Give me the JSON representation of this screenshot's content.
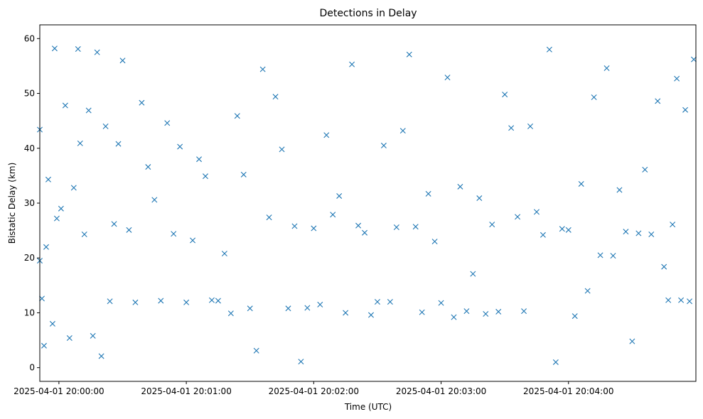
{
  "chart_data": {
    "type": "scatter",
    "title": "Detections in Delay",
    "xlabel": "Time (UTC)",
    "ylabel": "Bistatic Delay (km)",
    "marker": "x",
    "color": "#1f77b4",
    "grid": false,
    "legend": "none",
    "x_unit": "datetime",
    "xlim": [
      "2025-04-01 19:59:51",
      "2025-04-01 20:05:00"
    ],
    "ylim": [
      -2.5,
      62.5
    ],
    "x_ticks": [
      "2025-04-01 20:00:00",
      "2025-04-01 20:01:00",
      "2025-04-01 20:02:00",
      "2025-04-01 20:03:00",
      "2025-04-01 20:04:00"
    ],
    "y_ticks": [
      0,
      10,
      20,
      30,
      40,
      50,
      60
    ],
    "series": [
      {
        "x": [
          "2025-04-01 19:59:51",
          "2025-04-01 19:59:51",
          "2025-04-01 19:59:52",
          "2025-04-01 19:59:53",
          "2025-04-01 19:59:54",
          "2025-04-01 19:59:55",
          "2025-04-01 19:59:57",
          "2025-04-01 19:59:58",
          "2025-04-01 19:59:59",
          "2025-04-01 20:00:01",
          "2025-04-01 20:00:03",
          "2025-04-01 20:00:05",
          "2025-04-01 20:00:07",
          "2025-04-01 20:00:09",
          "2025-04-01 20:00:10",
          "2025-04-01 20:00:12",
          "2025-04-01 20:00:14",
          "2025-04-01 20:00:16",
          "2025-04-01 20:00:18",
          "2025-04-01 20:00:20",
          "2025-04-01 20:00:22",
          "2025-04-01 20:00:24",
          "2025-04-01 20:00:26",
          "2025-04-01 20:00:28",
          "2025-04-01 20:00:30",
          "2025-04-01 20:00:33",
          "2025-04-01 20:00:36",
          "2025-04-01 20:00:39",
          "2025-04-01 20:00:42",
          "2025-04-01 20:00:45",
          "2025-04-01 20:00:48",
          "2025-04-01 20:00:51",
          "2025-04-01 20:00:54",
          "2025-04-01 20:00:57",
          "2025-04-01 20:01:00",
          "2025-04-01 20:01:03",
          "2025-04-01 20:01:06",
          "2025-04-01 20:01:09",
          "2025-04-01 20:01:12",
          "2025-04-01 20:01:15",
          "2025-04-01 20:01:18",
          "2025-04-01 20:01:21",
          "2025-04-01 20:01:24",
          "2025-04-01 20:01:27",
          "2025-04-01 20:01:30",
          "2025-04-01 20:01:33",
          "2025-04-01 20:01:36",
          "2025-04-01 20:01:39",
          "2025-04-01 20:01:42",
          "2025-04-01 20:01:45",
          "2025-04-01 20:01:48",
          "2025-04-01 20:01:51",
          "2025-04-01 20:01:54",
          "2025-04-01 20:01:57",
          "2025-04-01 20:02:00",
          "2025-04-01 20:02:03",
          "2025-04-01 20:02:06",
          "2025-04-01 20:02:09",
          "2025-04-01 20:02:12",
          "2025-04-01 20:02:15",
          "2025-04-01 20:02:18",
          "2025-04-01 20:02:21",
          "2025-04-01 20:02:24",
          "2025-04-01 20:02:27",
          "2025-04-01 20:02:30",
          "2025-04-01 20:02:33",
          "2025-04-01 20:02:36",
          "2025-04-01 20:02:39",
          "2025-04-01 20:02:42",
          "2025-04-01 20:02:45",
          "2025-04-01 20:02:48",
          "2025-04-01 20:02:51",
          "2025-04-01 20:02:54",
          "2025-04-01 20:02:57",
          "2025-04-01 20:03:00",
          "2025-04-01 20:03:03",
          "2025-04-01 20:03:06",
          "2025-04-01 20:03:09",
          "2025-04-01 20:03:12",
          "2025-04-01 20:03:15",
          "2025-04-01 20:03:18",
          "2025-04-01 20:03:21",
          "2025-04-01 20:03:24",
          "2025-04-01 20:03:27",
          "2025-04-01 20:03:30",
          "2025-04-01 20:03:33",
          "2025-04-01 20:03:36",
          "2025-04-01 20:03:39",
          "2025-04-01 20:03:42",
          "2025-04-01 20:03:45",
          "2025-04-01 20:03:48",
          "2025-04-01 20:03:51",
          "2025-04-01 20:03:54",
          "2025-04-01 20:03:57",
          "2025-04-01 20:04:00",
          "2025-04-01 20:04:03",
          "2025-04-01 20:04:06",
          "2025-04-01 20:04:09",
          "2025-04-01 20:04:12",
          "2025-04-01 20:04:15",
          "2025-04-01 20:04:18",
          "2025-04-01 20:04:21",
          "2025-04-01 20:04:24",
          "2025-04-01 20:04:27",
          "2025-04-01 20:04:30",
          "2025-04-01 20:04:33",
          "2025-04-01 20:04:36",
          "2025-04-01 20:04:39",
          "2025-04-01 20:04:42",
          "2025-04-01 20:04:45",
          "2025-04-01 20:04:47",
          "2025-04-01 20:04:49",
          "2025-04-01 20:04:51",
          "2025-04-01 20:04:53",
          "2025-04-01 20:04:55",
          "2025-04-01 20:04:57",
          "2025-04-01 20:04:59"
        ],
        "y": [
          43.4,
          19.5,
          12.6,
          4.0,
          22.0,
          34.3,
          8.0,
          58.2,
          27.2,
          29.0,
          47.8,
          5.4,
          32.8,
          58.1,
          40.9,
          24.3,
          46.9,
          5.8,
          57.5,
          2.1,
          44.0,
          12.1,
          26.2,
          40.8,
          56.0,
          25.1,
          11.9,
          48.3,
          36.6,
          30.6,
          12.2,
          44.6,
          24.4,
          40.3,
          11.9,
          23.2,
          38.0,
          34.9,
          12.3,
          12.2,
          20.8,
          9.9,
          45.9,
          35.2,
          10.8,
          3.1,
          54.4,
          27.4,
          49.4,
          39.8,
          10.8,
          25.8,
          1.1,
          10.9,
          25.4,
          11.5,
          42.4,
          27.9,
          31.3,
          10.0,
          55.3,
          25.9,
          24.6,
          9.6,
          12.0,
          40.5,
          12.0,
          25.6,
          43.2,
          57.1,
          25.7,
          10.1,
          31.7,
          23.0,
          11.8,
          52.9,
          9.2,
          33.0,
          10.3,
          17.1,
          30.9,
          9.8,
          26.1,
          10.2,
          49.8,
          43.7,
          27.5,
          10.3,
          44.0,
          28.4,
          24.2,
          58.0,
          1.0,
          25.3,
          25.1,
          9.4,
          33.5,
          14.0,
          49.3,
          20.5,
          54.6,
          20.4,
          32.4,
          24.8,
          4.8,
          24.5,
          36.1,
          24.3,
          48.6,
          18.4,
          12.3,
          26.1,
          52.7,
          12.3,
          47.0,
          12.1,
          56.2
        ]
      }
    ]
  }
}
